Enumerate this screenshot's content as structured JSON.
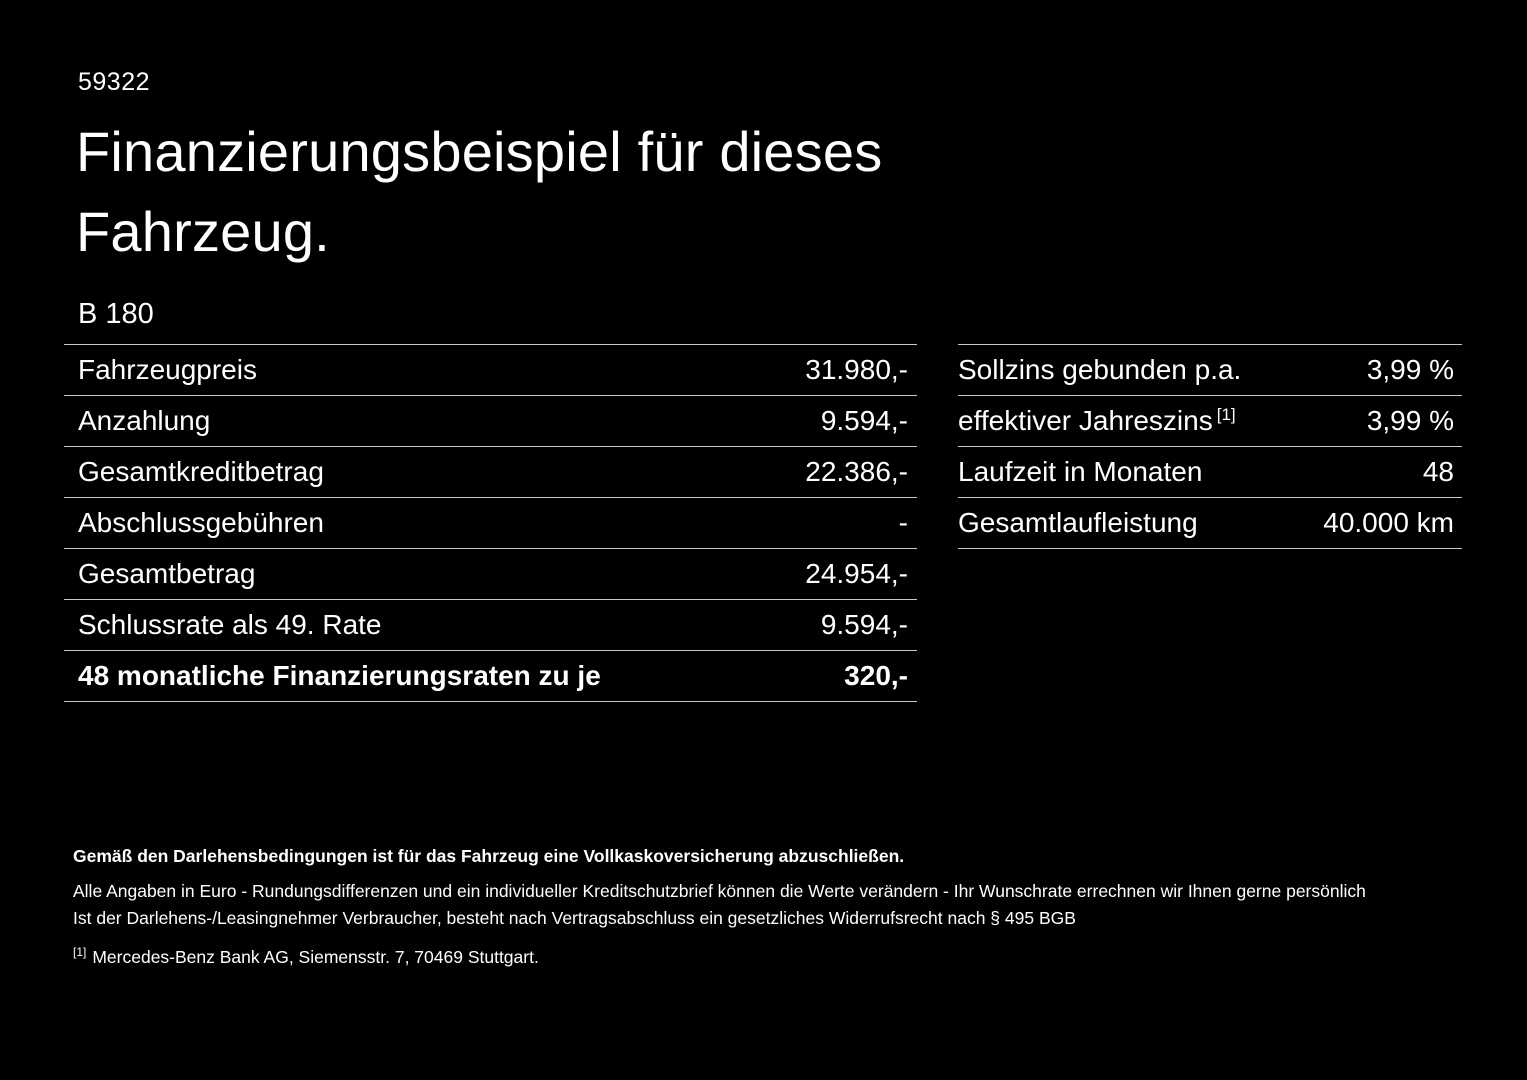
{
  "page": {
    "id_number": "59322",
    "title": "Finanzierungsbeispiel für dieses\nFahrzeug.",
    "model": "B 180"
  },
  "left_table": {
    "rows": [
      {
        "label": "Fahrzeugpreis",
        "value": "31.980,-"
      },
      {
        "label": "Anzahlung",
        "value": "9.594,-"
      },
      {
        "label": "Gesamtkreditbetrag",
        "value": "22.386,-"
      },
      {
        "label": "Abschlussgebühren",
        "value": "-"
      },
      {
        "label": "Gesamtbetrag",
        "value": "24.954,-"
      },
      {
        "label": "Schlussrate als 49. Rate",
        "value": "9.594,-"
      },
      {
        "label": "48 monatliche Finanzierungsraten zu je",
        "value": "320,-"
      }
    ]
  },
  "right_table": {
    "rows": [
      {
        "label": "Sollzins gebunden p.a.",
        "sup": "",
        "value": "3,99 %"
      },
      {
        "label": "effektiver Jahreszins",
        "sup": "[1]",
        "value": "3,99 %"
      },
      {
        "label": "Laufzeit in Monaten",
        "sup": "",
        "value": "48"
      },
      {
        "label": "Gesamtlaufleistung",
        "sup": "",
        "value": "40.000 km"
      }
    ]
  },
  "footer": {
    "line1": "Gemäß den Darlehensbedingungen ist für das Fahrzeug eine Vollkaskoversicherung abzuschließen.",
    "line2": "Alle Angaben in Euro - Rundungsdifferenzen und ein individueller Kreditschutzbrief können die Werte verändern - Ihr Wunschrate errechnen wir Ihnen gerne persönlich",
    "line3": "Ist der Darlehens-/Leasingnehmer Verbraucher, besteht nach Vertragsabschluss ein gesetzliches Widerrufsrecht nach § 495 BGB",
    "footnote_marker": "[1]",
    "footnote_text": "Mercedes-Benz Bank AG, Siemensstr. 7, 70469 Stuttgart."
  },
  "colors": {
    "background": "#000000",
    "text": "#ffffff",
    "divider": "#c8c8c8"
  }
}
